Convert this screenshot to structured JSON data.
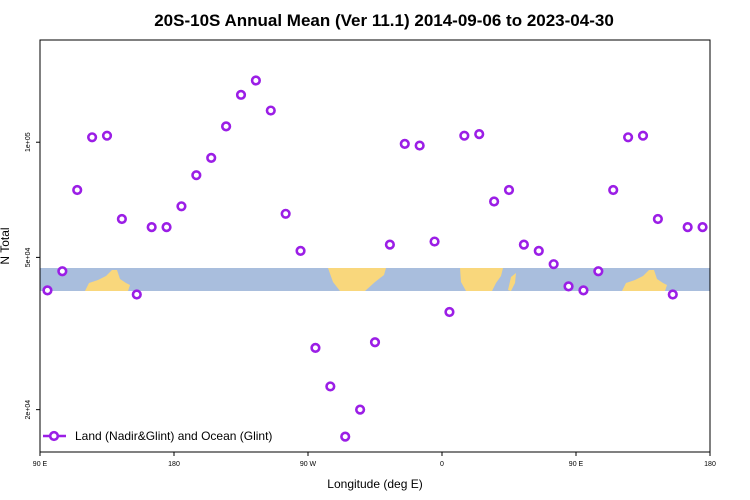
{
  "chart_data": {
    "type": "scatter",
    "title": "20S-10S Annual Mean (Ver 11.1)   2014-09-06 to 2023-04-30",
    "xlabel": "Longitude (deg E)",
    "ylabel": "N Total",
    "x_ticks": [
      {
        "value": 90,
        "label": "90 E"
      },
      {
        "value": 180,
        "label": "180"
      },
      {
        "value": 270,
        "label": "90 W"
      },
      {
        "value": 360,
        "label": "0"
      },
      {
        "value": 450,
        "label": "90 E"
      },
      {
        "value": 540,
        "label": "180"
      }
    ],
    "y_ticks": [
      {
        "value": 20000,
        "label": "2e+04"
      },
      {
        "value": 50000,
        "label": "5e+04"
      },
      {
        "value": 100000,
        "label": "1e+05"
      }
    ],
    "xlim": [
      90,
      540
    ],
    "ylim": [
      15500,
      185000
    ],
    "y_scale": "log",
    "grid": false,
    "legend_position": "bottom-left",
    "series": [
      {
        "name": "Land (Nadir&Glint) and Ocean (Glint)",
        "color": "#9b1ee6",
        "x": [
          95,
          105,
          115,
          125,
          135,
          145,
          155,
          165,
          175,
          185,
          195,
          205,
          215,
          225,
          235,
          245,
          255,
          265,
          275,
          285,
          295,
          305,
          315,
          325,
          335,
          345,
          355,
          365,
          375,
          385,
          395,
          405,
          415,
          425,
          435,
          445,
          455,
          465,
          475,
          485,
          495,
          505,
          515,
          525,
          535
        ],
        "y": [
          41000,
          46000,
          75000,
          103000,
          104000,
          63000,
          40000,
          60000,
          60000,
          68000,
          82000,
          91000,
          110000,
          133000,
          145000,
          121000,
          65000,
          52000,
          29000,
          23000,
          17000,
          20000,
          30000,
          54000,
          99000,
          98000,
          55000,
          36000,
          104000,
          105000,
          70000,
          75000,
          54000,
          52000,
          48000,
          42000,
          41000,
          46000,
          75000,
          103000,
          104000,
          63000,
          40000,
          60000,
          60000
        ]
      }
    ]
  }
}
